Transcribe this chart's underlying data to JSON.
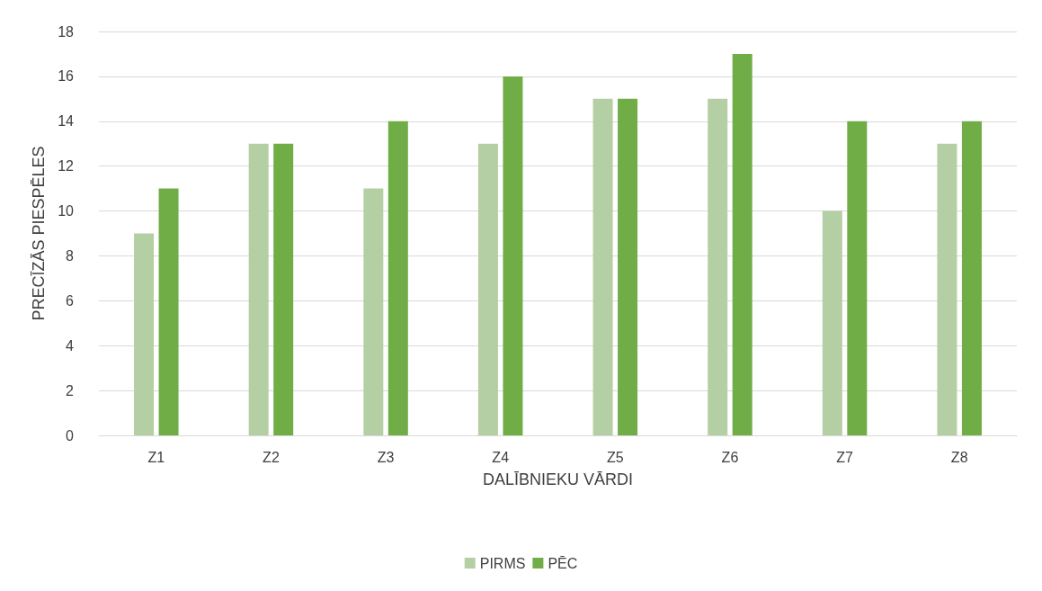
{
  "chart_data": {
    "type": "bar",
    "xlabel": "DALĪBNIEKU VĀRDI",
    "ylabel": "PRECĪZĀS PIESPĒLES",
    "categories": [
      "Z1",
      "Z2",
      "Z3",
      "Z4",
      "Z5",
      "Z6",
      "Z7",
      "Z8"
    ],
    "series": [
      {
        "name": "PIRMS",
        "color": "#b4cfa4",
        "values": [
          9,
          13,
          11,
          13,
          15,
          15,
          10,
          13
        ]
      },
      {
        "name": "PĒC",
        "color": "#70ad47",
        "values": [
          11,
          13,
          14,
          16,
          15,
          17,
          14,
          14
        ]
      }
    ],
    "ylim": [
      0,
      18
    ],
    "yticks": [
      0,
      2,
      4,
      6,
      8,
      10,
      12,
      14,
      16,
      18
    ],
    "grid": "y",
    "legend": "bottom"
  }
}
